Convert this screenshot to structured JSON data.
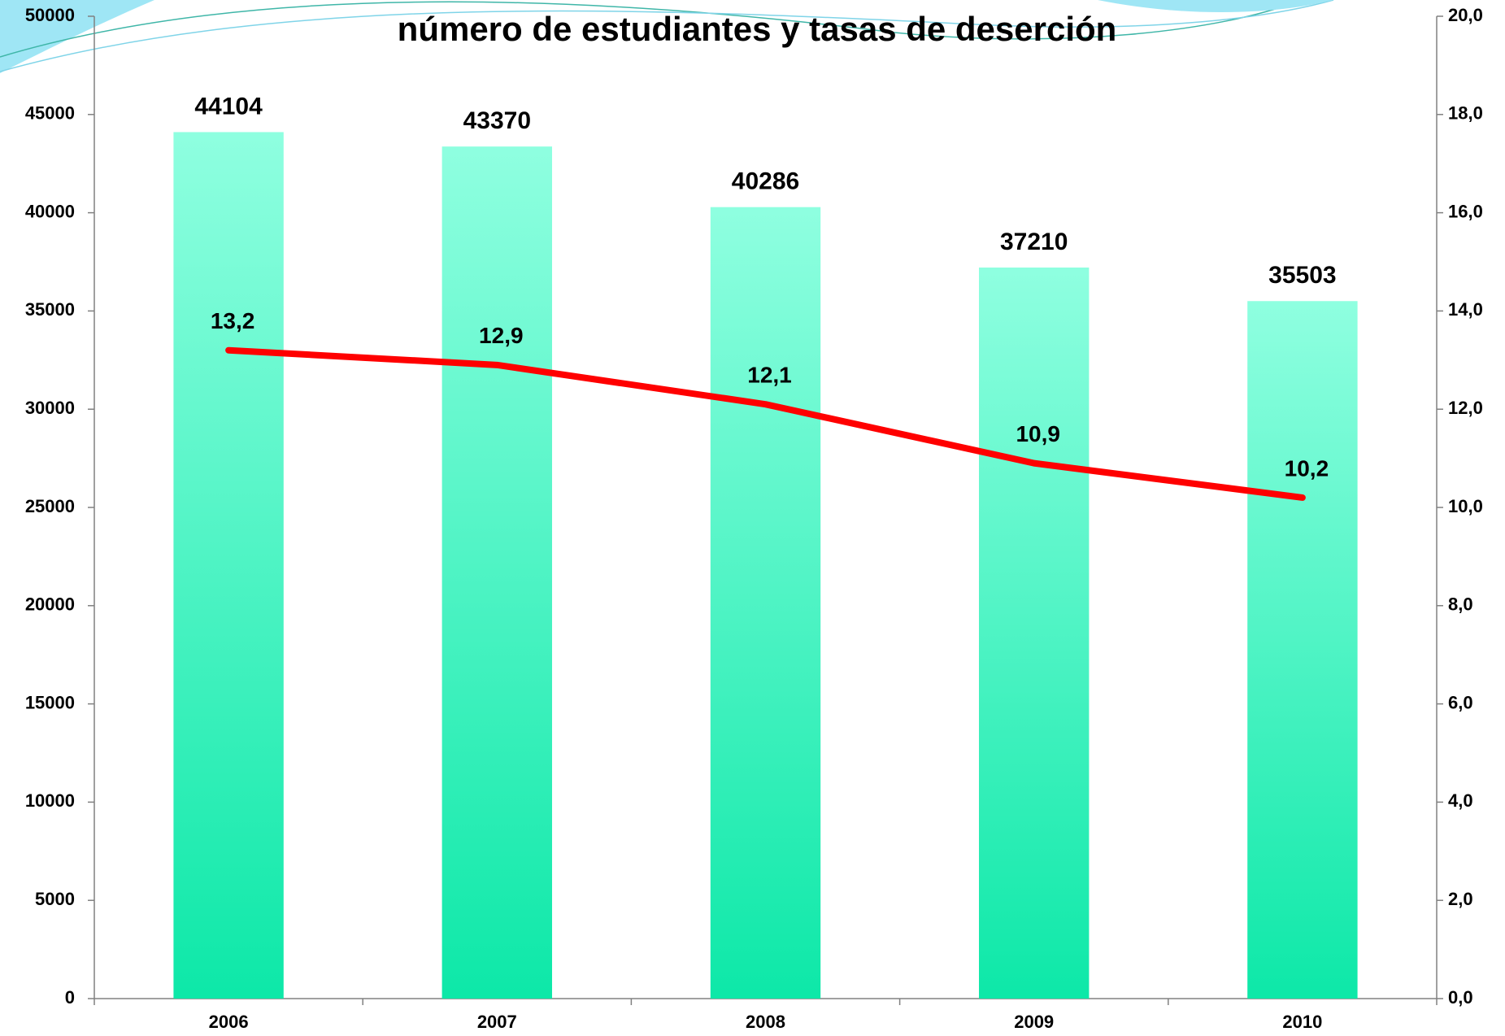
{
  "chart_data": {
    "type": "bar",
    "title": "número de estudiantes y tasas de deserción",
    "categories": [
      "2006",
      "2007",
      "2008",
      "2009",
      "2010"
    ],
    "series": [
      {
        "color": "#1de9b6",
        "values": [
          44104,
          43370,
          40286,
          37210,
          35503
        ]
      },
      {
        "color": "#ff0000",
        "axis": "y2",
        "values": [
          13.2,
          12.9,
          12.1,
          10.9,
          10.2
        ],
        "value_labels": [
          "13,2",
          "12,9",
          "12,1",
          "10,9",
          "10,2"
        ]
      }
    ],
    "ylim": [
      0,
      50000
    ],
    "yticks": [
      0,
      5000,
      10000,
      15000,
      20000,
      25000,
      30000,
      35000,
      40000,
      45000,
      50000
    ],
    "y2lim": [
      0,
      20
    ],
    "y2ticks": [
      {
        "value": 0,
        "label": "0,0"
      },
      {
        "value": 2,
        "label": "2,0"
      },
      {
        "value": 4,
        "label": "4,0"
      },
      {
        "value": 6,
        "label": "6,0"
      },
      {
        "value": 8,
        "label": "8,0"
      },
      {
        "value": 10,
        "label": "10,0"
      },
      {
        "value": 12,
        "label": "12,0"
      },
      {
        "value": 14,
        "label": "14,0"
      },
      {
        "value": 16,
        "label": "16,0"
      },
      {
        "value": 18,
        "label": "18,0"
      },
      {
        "value": 20,
        "label": "20,0"
      }
    ],
    "grid": false
  }
}
